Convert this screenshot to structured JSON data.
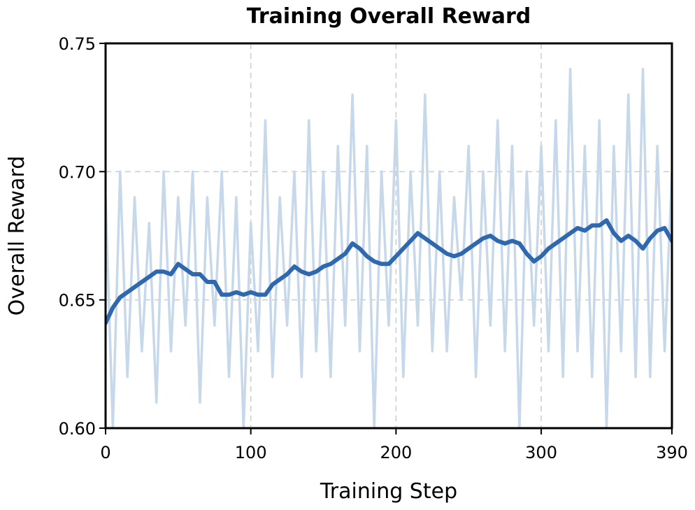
{
  "chart_data": {
    "type": "line",
    "title": "Training Overall Reward",
    "xlabel": "Training Step",
    "ylabel": "Overall Reward",
    "xlim": [
      0,
      390
    ],
    "ylim": [
      0.6,
      0.75
    ],
    "xticks": [
      0,
      100,
      200,
      300,
      390
    ],
    "xtick_labels": [
      "0",
      "100",
      "200",
      "300",
      "390"
    ],
    "yticks": [
      0.6,
      0.65,
      0.7,
      0.75
    ],
    "ytick_labels": [
      "0.60",
      "0.65",
      "0.70",
      "0.75"
    ],
    "grid": true,
    "colors": {
      "raw": "#c6d8ea",
      "smoothed": "#2f68ac"
    },
    "series": [
      {
        "role": "raw",
        "x": [
          0,
          5,
          10,
          15,
          20,
          25,
          30,
          35,
          40,
          45,
          50,
          55,
          60,
          65,
          70,
          75,
          80,
          85,
          90,
          95,
          100,
          105,
          110,
          115,
          120,
          125,
          130,
          135,
          140,
          145,
          150,
          155,
          160,
          165,
          170,
          175,
          180,
          185,
          190,
          195,
          200,
          205,
          210,
          215,
          220,
          225,
          230,
          235,
          240,
          245,
          250,
          255,
          260,
          265,
          270,
          275,
          280,
          285,
          290,
          295,
          300,
          305,
          310,
          315,
          320,
          325,
          330,
          335,
          340,
          345,
          350,
          355,
          360,
          365,
          370,
          375,
          380,
          385,
          390
        ],
        "y": [
          0.69,
          0.6,
          0.7,
          0.62,
          0.69,
          0.63,
          0.68,
          0.61,
          0.7,
          0.63,
          0.69,
          0.64,
          0.7,
          0.61,
          0.69,
          0.64,
          0.7,
          0.62,
          0.69,
          0.6,
          0.68,
          0.63,
          0.72,
          0.62,
          0.69,
          0.64,
          0.7,
          0.62,
          0.72,
          0.63,
          0.7,
          0.62,
          0.71,
          0.64,
          0.73,
          0.63,
          0.71,
          0.6,
          0.7,
          0.64,
          0.72,
          0.62,
          0.7,
          0.64,
          0.73,
          0.63,
          0.7,
          0.63,
          0.69,
          0.65,
          0.71,
          0.62,
          0.7,
          0.64,
          0.72,
          0.63,
          0.71,
          0.6,
          0.7,
          0.64,
          0.71,
          0.63,
          0.72,
          0.62,
          0.74,
          0.63,
          0.71,
          0.62,
          0.72,
          0.6,
          0.71,
          0.63,
          0.73,
          0.62,
          0.74,
          0.62,
          0.71,
          0.63,
          0.7
        ]
      },
      {
        "role": "smoothed",
        "x": [
          0,
          5,
          10,
          15,
          20,
          25,
          30,
          35,
          40,
          45,
          50,
          55,
          60,
          65,
          70,
          75,
          80,
          85,
          90,
          95,
          100,
          105,
          110,
          115,
          120,
          125,
          130,
          135,
          140,
          145,
          150,
          155,
          160,
          165,
          170,
          175,
          180,
          185,
          190,
          195,
          200,
          205,
          210,
          215,
          220,
          225,
          230,
          235,
          240,
          245,
          250,
          255,
          260,
          265,
          270,
          275,
          280,
          285,
          290,
          295,
          300,
          305,
          310,
          315,
          320,
          325,
          330,
          335,
          340,
          345,
          350,
          355,
          360,
          365,
          370,
          375,
          380,
          385,
          390
        ],
        "y": [
          0.641,
          0.647,
          0.651,
          0.653,
          0.655,
          0.657,
          0.659,
          0.661,
          0.661,
          0.66,
          0.664,
          0.662,
          0.66,
          0.66,
          0.657,
          0.657,
          0.652,
          0.652,
          0.653,
          0.652,
          0.653,
          0.652,
          0.652,
          0.656,
          0.658,
          0.66,
          0.663,
          0.661,
          0.66,
          0.661,
          0.663,
          0.664,
          0.666,
          0.668,
          0.672,
          0.67,
          0.667,
          0.665,
          0.664,
          0.664,
          0.667,
          0.67,
          0.673,
          0.676,
          0.674,
          0.672,
          0.67,
          0.668,
          0.667,
          0.668,
          0.67,
          0.672,
          0.674,
          0.675,
          0.673,
          0.672,
          0.673,
          0.672,
          0.668,
          0.665,
          0.667,
          0.67,
          0.672,
          0.674,
          0.676,
          0.678,
          0.677,
          0.679,
          0.679,
          0.681,
          0.676,
          0.673,
          0.675,
          0.673,
          0.67,
          0.674,
          0.677,
          0.678,
          0.673
        ]
      }
    ]
  }
}
